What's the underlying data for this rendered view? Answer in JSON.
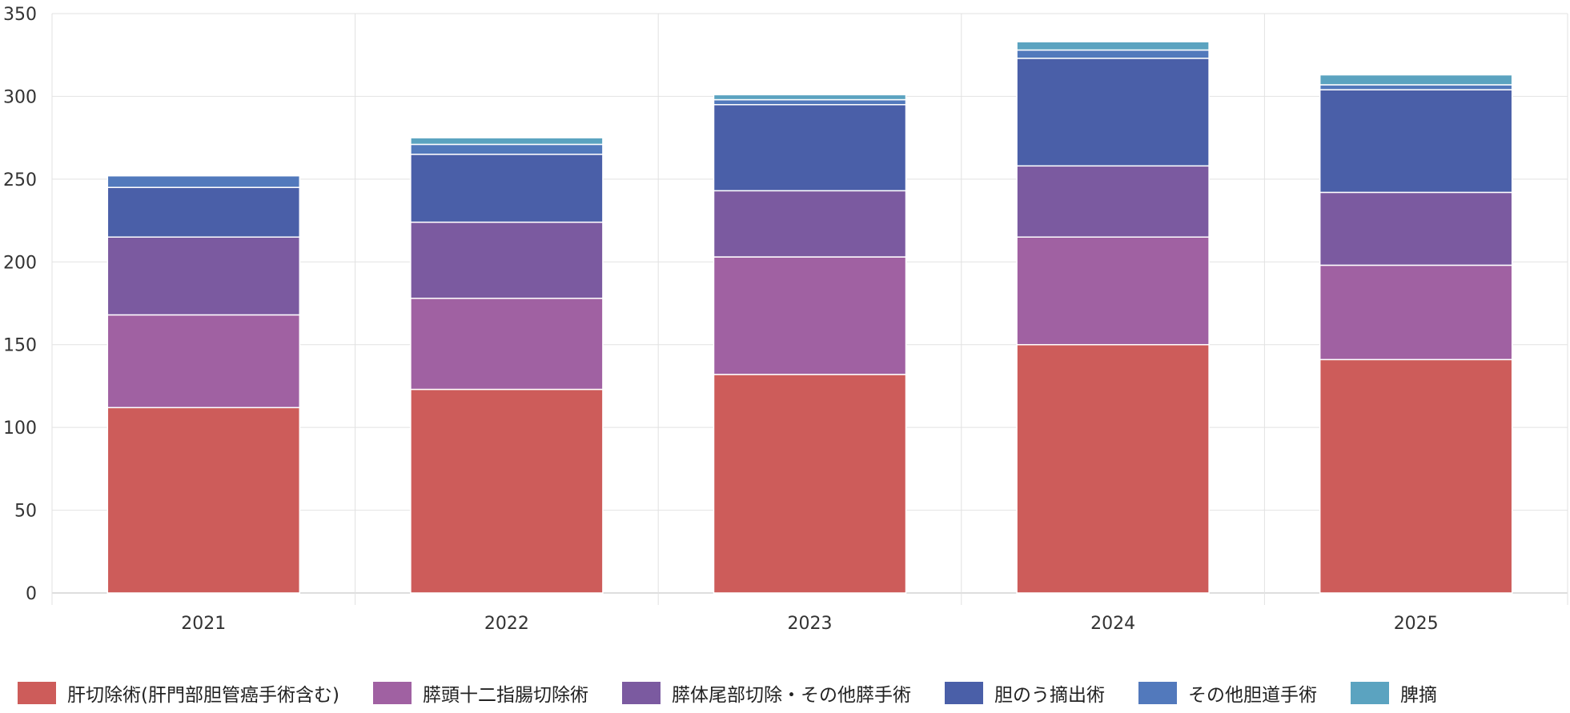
{
  "chart_data": {
    "type": "bar",
    "stacked": true,
    "categories": [
      "2021",
      "2022",
      "2023",
      "2024",
      "2025"
    ],
    "ylim": [
      0,
      350
    ],
    "yticks": [
      0,
      50,
      100,
      150,
      200,
      250,
      300,
      350
    ],
    "grid": true,
    "legend_position": "bottom",
    "series": [
      {
        "name": "肝切除術(肝門部胆管癌手術含む)",
        "color": "#cd5c5a",
        "values": [
          112,
          123,
          132,
          150,
          141
        ]
      },
      {
        "name": "膵頭十二指腸切除術",
        "color": "#a061a2",
        "values": [
          56,
          55,
          71,
          65,
          57
        ]
      },
      {
        "name": "膵体尾部切除・その他膵手術",
        "color": "#7b5aa0",
        "values": [
          47,
          46,
          40,
          43,
          44
        ]
      },
      {
        "name": "胆のう摘出術",
        "color": "#4a5fa8",
        "values": [
          30,
          41,
          52,
          65,
          62
        ]
      },
      {
        "name": "その他胆道手術",
        "color": "#5279bc",
        "values": [
          7,
          6,
          3,
          5,
          3
        ]
      },
      {
        "name": "脾摘",
        "color": "#5ba3c0",
        "values": [
          0,
          4,
          3,
          5,
          6
        ]
      }
    ]
  }
}
